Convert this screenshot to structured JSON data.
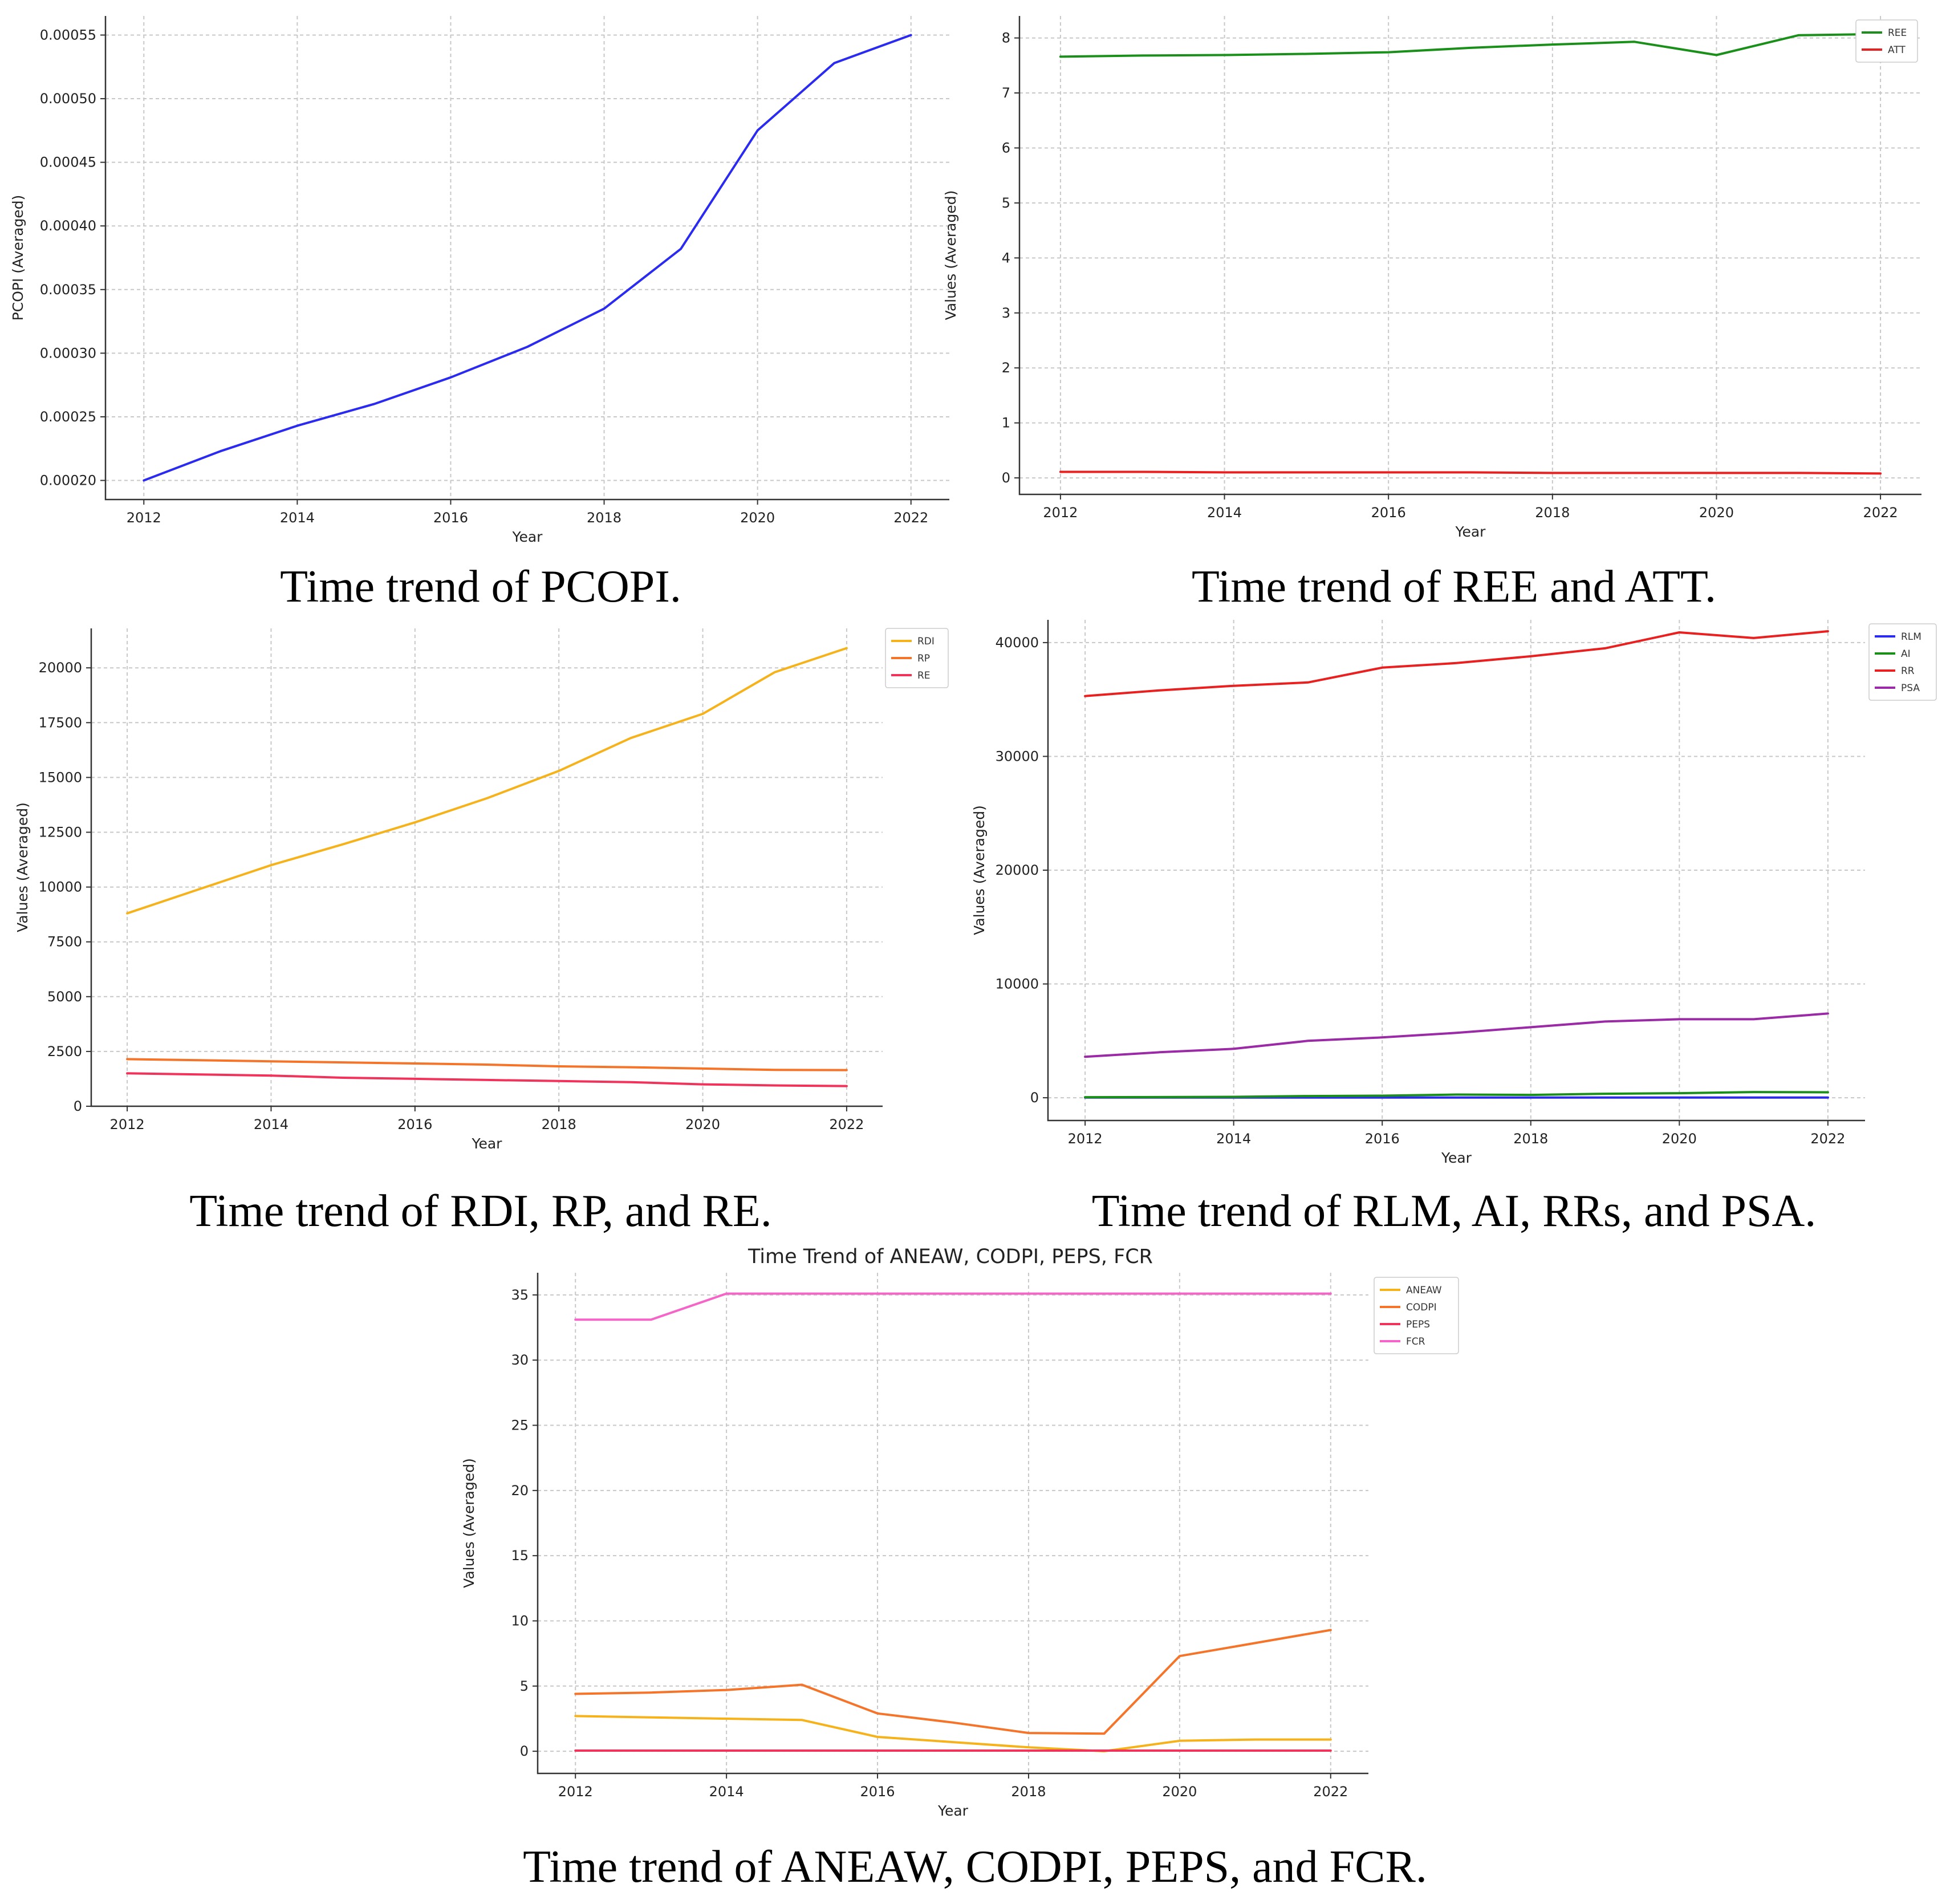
{
  "chart_data": [
    {
      "id": "pcopi",
      "type": "line",
      "caption": "Time trend of PCOPI.",
      "title": "",
      "xlabel": "Year",
      "ylabel": "PCOPI (Averaged)",
      "grid": true,
      "xlim": [
        2011.5,
        2022.5
      ],
      "ylim": [
        0.000185,
        0.000565
      ],
      "xticks": [
        2012,
        2014,
        2016,
        2018,
        2020,
        2022
      ],
      "xtick_labels": [
        "2012",
        "2014",
        "2016",
        "2018",
        "2020",
        "2022"
      ],
      "yticks": [
        0.0002,
        0.00025,
        0.0003,
        0.00035,
        0.0004,
        0.00045,
        0.0005,
        0.00055
      ],
      "ytick_labels": [
        "0.00020",
        "0.00025",
        "0.00030",
        "0.00035",
        "0.00040",
        "0.00045",
        "0.00050",
        "0.00055"
      ],
      "x": [
        2012,
        2013,
        2014,
        2015,
        2016,
        2017,
        2018,
        2019,
        2020,
        2021,
        2022
      ],
      "series": [
        {
          "name": "PCOPI",
          "color": "#2a2af0",
          "values": [
            0.0002,
            0.000223,
            0.000243,
            0.00026,
            0.000281,
            0.000305,
            0.000335,
            0.000382,
            0.000475,
            0.000528,
            0.00055
          ]
        }
      ],
      "legend": null
    },
    {
      "id": "ree_att",
      "type": "line",
      "caption": "Time trend of REE and ATT.",
      "title": "",
      "xlabel": "Year",
      "ylabel": "Values (Averaged)",
      "grid": true,
      "xlim": [
        2011.5,
        2022.5
      ],
      "ylim": [
        -0.3,
        8.4
      ],
      "xticks": [
        2012,
        2014,
        2016,
        2018,
        2020,
        2022
      ],
      "xtick_labels": [
        "2012",
        "2014",
        "2016",
        "2018",
        "2020",
        "2022"
      ],
      "yticks": [
        0,
        1,
        2,
        3,
        4,
        5,
        6,
        7,
        8
      ],
      "ytick_labels": [
        "0",
        "1",
        "2",
        "3",
        "4",
        "5",
        "6",
        "7",
        "8"
      ],
      "x": [
        2012,
        2013,
        2014,
        2015,
        2016,
        2017,
        2018,
        2019,
        2020,
        2021,
        2022
      ],
      "series": [
        {
          "name": "REE",
          "color": "#1a8f1a",
          "values": [
            7.66,
            7.68,
            7.69,
            7.71,
            7.74,
            7.82,
            7.88,
            7.93,
            7.69,
            8.05,
            8.07
          ]
        },
        {
          "name": "ATT",
          "color": "#e82020",
          "values": [
            0.11,
            0.11,
            0.1,
            0.1,
            0.1,
            0.1,
            0.09,
            0.09,
            0.09,
            0.09,
            0.08
          ]
        }
      ],
      "legend": {
        "position": "top-right",
        "entries": [
          "REE",
          "ATT"
        ]
      }
    },
    {
      "id": "rdi_rp_re",
      "type": "line",
      "caption": "Time trend of RDI, RP, and RE.",
      "title": "",
      "xlabel": "Year",
      "ylabel": "Values (Averaged)",
      "grid": true,
      "xlim": [
        2011.5,
        2022.5
      ],
      "ylim": [
        0,
        21800
      ],
      "xticks": [
        2012,
        2014,
        2016,
        2018,
        2020,
        2022
      ],
      "xtick_labels": [
        "2012",
        "2014",
        "2016",
        "2018",
        "2020",
        "2022"
      ],
      "yticks": [
        0,
        2500,
        5000,
        7500,
        10000,
        12500,
        15000,
        17500,
        20000
      ],
      "ytick_labels": [
        "0",
        "2500",
        "5000",
        "7500",
        "10000",
        "12500",
        "15000",
        "17500",
        "20000"
      ],
      "x": [
        2012,
        2013,
        2014,
        2015,
        2016,
        2017,
        2018,
        2019,
        2020,
        2021,
        2022
      ],
      "series": [
        {
          "name": "RDI",
          "color": "#f5b21b",
          "values": [
            8800,
            9900,
            11000,
            11950,
            12950,
            14050,
            15300,
            16800,
            17900,
            19800,
            20900
          ]
        },
        {
          "name": "RP",
          "color": "#f4742a",
          "values": [
            2150,
            2100,
            2050,
            2000,
            1950,
            1900,
            1820,
            1780,
            1720,
            1660,
            1650
          ]
        },
        {
          "name": "RE",
          "color": "#f0335a",
          "values": [
            1500,
            1450,
            1400,
            1300,
            1250,
            1200,
            1150,
            1100,
            1000,
            950,
            920
          ]
        }
      ],
      "legend": {
        "position": "top-right",
        "entries": [
          "RDI",
          "RP",
          "RE"
        ]
      }
    },
    {
      "id": "rlm_ai_rr_psa",
      "type": "line",
      "caption": "Time trend of RLM, AI, RRs, and PSA.",
      "title": "",
      "xlabel": "Year",
      "ylabel": "Values (Averaged)",
      "grid": true,
      "xlim": [
        2011.5,
        2022.5
      ],
      "ylim": [
        -2000,
        42000
      ],
      "xticks": [
        2012,
        2014,
        2016,
        2018,
        2020,
        2022
      ],
      "xtick_labels": [
        "2012",
        "2014",
        "2016",
        "2018",
        "2020",
        "2022"
      ],
      "yticks": [
        0,
        10000,
        20000,
        30000,
        40000
      ],
      "ytick_labels": [
        "0",
        "10000",
        "20000",
        "30000",
        "40000"
      ],
      "x": [
        2012,
        2013,
        2014,
        2015,
        2016,
        2017,
        2018,
        2019,
        2020,
        2021,
        2022
      ],
      "series": [
        {
          "name": "RLM",
          "color": "#2a2af0",
          "values": [
            20,
            20,
            20,
            20,
            20,
            20,
            20,
            20,
            20,
            20,
            20
          ]
        },
        {
          "name": "AI",
          "color": "#1a8f1a",
          "values": [
            50,
            60,
            80,
            150,
            180,
            280,
            250,
            350,
            400,
            500,
            480
          ]
        },
        {
          "name": "RR",
          "color": "#e82020",
          "values": [
            35300,
            35800,
            36200,
            36500,
            37800,
            38200,
            38800,
            39500,
            40900,
            40400,
            41000
          ]
        },
        {
          "name": "PSA",
          "color": "#9a2aa5",
          "values": [
            3600,
            4000,
            4300,
            5000,
            5300,
            5700,
            6200,
            6700,
            6900,
            6900,
            7400
          ]
        }
      ],
      "legend": {
        "position": "top-right",
        "entries": [
          "RLM",
          "AI",
          "RR",
          "PSA"
        ]
      }
    },
    {
      "id": "aneaw_codpi_peps_fcr",
      "type": "line",
      "caption": "Time trend of ANEAW, CODPI, PEPS, and FCR.",
      "title": "Time Trend of ANEAW, CODPI, PEPS, FCR",
      "xlabel": "Year",
      "ylabel": "Values (Averaged)",
      "grid": true,
      "xlim": [
        2011.5,
        2022.5
      ],
      "ylim": [
        -1.7,
        36.7
      ],
      "xticks": [
        2012,
        2014,
        2016,
        2018,
        2020,
        2022
      ],
      "xtick_labels": [
        "2012",
        "2014",
        "2016",
        "2018",
        "2020",
        "2022"
      ],
      "yticks": [
        0,
        5,
        10,
        15,
        20,
        25,
        30,
        35
      ],
      "ytick_labels": [
        "0",
        "5",
        "10",
        "15",
        "20",
        "25",
        "30",
        "35"
      ],
      "x": [
        2012,
        2013,
        2014,
        2015,
        2016,
        2017,
        2018,
        2019,
        2020,
        2021,
        2022
      ],
      "series": [
        {
          "name": "ANEAW",
          "color": "#f5b21b",
          "values": [
            2.7,
            2.6,
            2.5,
            2.4,
            1.1,
            0.7,
            0.3,
            0.0,
            0.8,
            0.9,
            0.9
          ]
        },
        {
          "name": "CODPI",
          "color": "#f4742a",
          "values": [
            4.4,
            4.5,
            4.7,
            5.1,
            2.9,
            2.2,
            1.4,
            1.35,
            7.3,
            8.3,
            9.3
          ]
        },
        {
          "name": "PEPS",
          "color": "#f0335a",
          "values": [
            0.05,
            0.05,
            0.05,
            0.05,
            0.05,
            0.05,
            0.05,
            0.05,
            0.05,
            0.05,
            0.05
          ]
        },
        {
          "name": "FCR",
          "color": "#f565c8",
          "values": [
            33.1,
            33.1,
            35.1,
            35.1,
            35.1,
            35.1,
            35.1,
            35.1,
            35.1,
            35.1,
            35.1
          ]
        }
      ],
      "legend": {
        "position": "top-right",
        "entries": [
          "ANEAW",
          "CODPI",
          "PEPS",
          "FCR"
        ]
      }
    }
  ]
}
